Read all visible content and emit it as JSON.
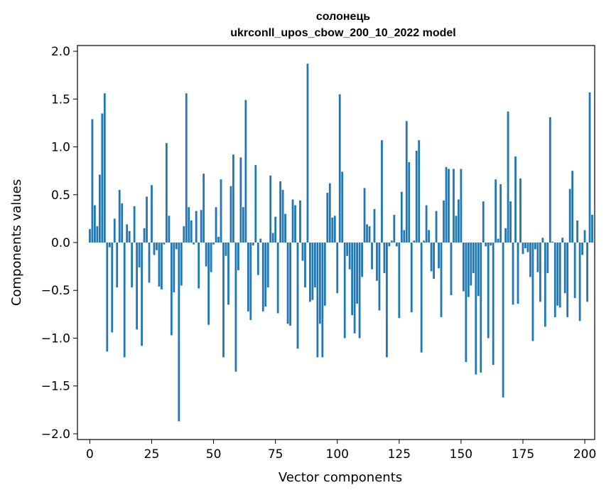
{
  "chart_data": {
    "type": "bar",
    "title_line1": "солонець",
    "title_line2": "ukrconll_upos_cbow_200_10_2022 model",
    "xlabel": "Vector components",
    "ylabel": "Components values",
    "xlim": [
      -5,
      204
    ],
    "ylim": [
      -2.06,
      2.06
    ],
    "bar_color": "#1f77b4",
    "x_ticks": [
      0,
      25,
      50,
      75,
      100,
      125,
      150,
      175,
      200
    ],
    "x_tick_labels": [
      "0",
      "25",
      "50",
      "75",
      "100",
      "125",
      "150",
      "175",
      "200"
    ],
    "y_ticks": [
      -2.0,
      -1.5,
      -1.0,
      -0.5,
      0.0,
      0.5,
      1.0,
      1.5,
      2.0
    ],
    "y_tick_labels": [
      "−2.0",
      "−1.5",
      "−1.0",
      "−0.5",
      "0.0",
      "0.5",
      "1.0",
      "1.5",
      "2.0"
    ],
    "values": [
      0.14,
      1.29,
      0.39,
      0.17,
      0.71,
      1.35,
      1.56,
      -1.14,
      -0.05,
      -0.94,
      0.25,
      -0.47,
      0.55,
      0.41,
      -1.2,
      0.19,
      0.12,
      -0.47,
      0.38,
      -0.91,
      -0.26,
      -1.08,
      0.15,
      0.48,
      -0.42,
      0.6,
      -0.13,
      -0.08,
      -0.46,
      -0.49,
      -0.02,
      1.04,
      0.28,
      -0.97,
      -0.52,
      -0.07,
      -1.87,
      -0.45,
      0.17,
      1.56,
      0.37,
      0.23,
      -0.02,
      0.33,
      -0.48,
      0.34,
      0.72,
      -0.25,
      -0.86,
      -0.31,
      -0.02,
      0.37,
      0.06,
      0.66,
      -1.2,
      -0.14,
      -0.65,
      0.59,
      0.92,
      -1.35,
      -0.29,
      0.89,
      0.37,
      1.49,
      -0.72,
      -0.81,
      -0.03,
      0.81,
      -0.34,
      0.04,
      -0.72,
      -0.67,
      -0.47,
      0.7,
      0.1,
      0.27,
      -0.74,
      0.64,
      0.55,
      0.3,
      -0.85,
      -0.87,
      0.45,
      0.39,
      -1.11,
      0.44,
      -0.19,
      -0.47,
      1.87,
      -0.62,
      -0.6,
      -0.47,
      -1.2,
      -0.85,
      -1.2,
      -0.66,
      0.52,
      0.62,
      0.26,
      0.28,
      -0.53,
      1.55,
      0.74,
      -1.0,
      -0.14,
      -0.28,
      -0.76,
      -0.95,
      -0.64,
      -1.0,
      -0.36,
      0.57,
      0.19,
      0.17,
      -0.28,
      0.35,
      -0.4,
      -0.71,
      1.07,
      -0.32,
      -1.2,
      -0.04,
      0.02,
      0.29,
      -0.04,
      -0.79,
      0.53,
      0.13,
      1.27,
      0.84,
      -0.73,
      0.02,
      0.96,
      1.07,
      -1.15,
      0.02,
      0.39,
      0.13,
      -0.3,
      -0.38,
      0.33,
      -0.27,
      -0.78,
      0.44,
      0.79,
      0.77,
      -0.55,
      0.77,
      0.28,
      0.45,
      0.77,
      -0.51,
      -1.25,
      -0.57,
      -0.45,
      -0.32,
      -1.38,
      -0.56,
      -1.36,
      0.43,
      -0.04,
      -1.0,
      -0.03,
      -1.28,
      0.66,
      0.04,
      0.61,
      -1.62,
      0.15,
      1.37,
      0.43,
      -0.65,
      0.9,
      -0.64,
      0.67,
      -0.12,
      -0.06,
      -0.1,
      -0.36,
      -1.03,
      -0.07,
      -0.31,
      -0.62,
      0.05,
      -0.88,
      -0.32,
      1.31,
      0.01,
      -0.78,
      -0.66,
      -0.68,
      0.05,
      -0.53,
      -0.78,
      0.56,
      0.75,
      -0.58,
      0.23,
      -0.82,
      -0.13,
      0.13,
      -0.62,
      1.57,
      0.29
    ]
  }
}
